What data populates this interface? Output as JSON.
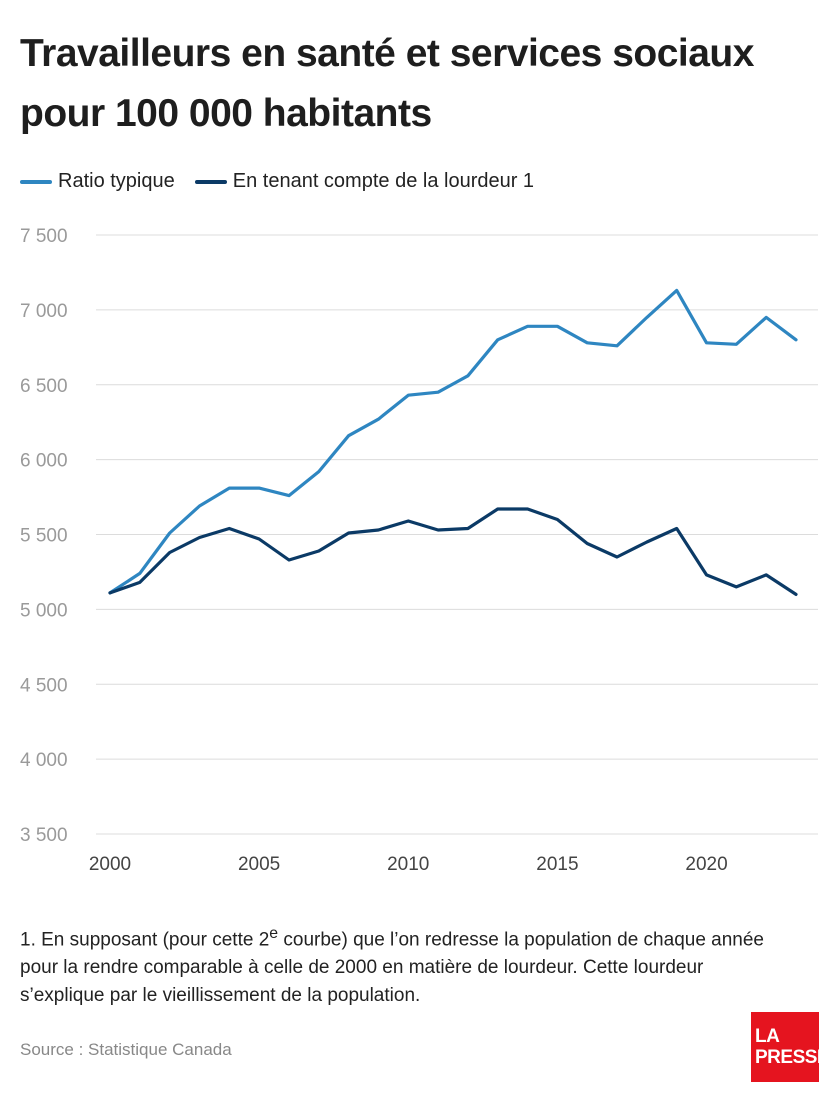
{
  "chart_data": {
    "type": "line",
    "title_line1": "Travailleurs en santé et services sociaux",
    "title_line2": "pour 100 000 habitants",
    "ylim": [
      3500,
      7500
    ],
    "yticks": [
      3500,
      4000,
      4500,
      5000,
      5500,
      6000,
      6500,
      7000,
      7500
    ],
    "ytick_labels": [
      "3 500",
      "4 000",
      "4 500",
      "5 000",
      "5 500",
      "6 000",
      "6 500",
      "7 000",
      "7 500"
    ],
    "xlim": [
      2000,
      2023
    ],
    "xticks": [
      2000,
      2005,
      2010,
      2015,
      2020
    ],
    "xtick_labels": [
      "2000",
      "2005",
      "2010",
      "2015",
      "2020"
    ],
    "grid": true,
    "legend_placement": "top-left",
    "x": [
      2000,
      2001,
      2002,
      2003,
      2004,
      2005,
      2006,
      2007,
      2008,
      2009,
      2010,
      2011,
      2012,
      2013,
      2014,
      2015,
      2016,
      2017,
      2018,
      2019,
      2020,
      2021,
      2022,
      2023
    ],
    "series": [
      {
        "name": "Ratio typique",
        "color": "#2e86c1",
        "values": [
          5110,
          5240,
          5510,
          5690,
          5810,
          5810,
          5760,
          5920,
          6160,
          6270,
          6430,
          6450,
          6560,
          6800,
          6890,
          6890,
          6780,
          6760,
          6950,
          7130,
          6780,
          6770,
          6950,
          6800
        ]
      },
      {
        "name": "En tenant compte de la lourdeur 1",
        "color": "#0b3a66",
        "values": [
          5110,
          5180,
          5380,
          5480,
          5540,
          5470,
          5330,
          5390,
          5510,
          5530,
          5590,
          5530,
          5540,
          5670,
          5670,
          5600,
          5440,
          5350,
          5450,
          5540,
          5230,
          5150,
          5230,
          5100
        ]
      }
    ]
  },
  "footnote": {
    "before_sup": "1. En supposant (pour cette 2",
    "sup": "e",
    "after_sup": " courbe) que l’on redresse la population de chaque année pour la rendre comparable à celle de 2000 en matière de lourdeur. Cette lourdeur s’explique par le vieillissement de la population."
  },
  "source": "Source : Statistique Canada",
  "logo": {
    "line1": "LA",
    "line2": "PRESSE"
  }
}
